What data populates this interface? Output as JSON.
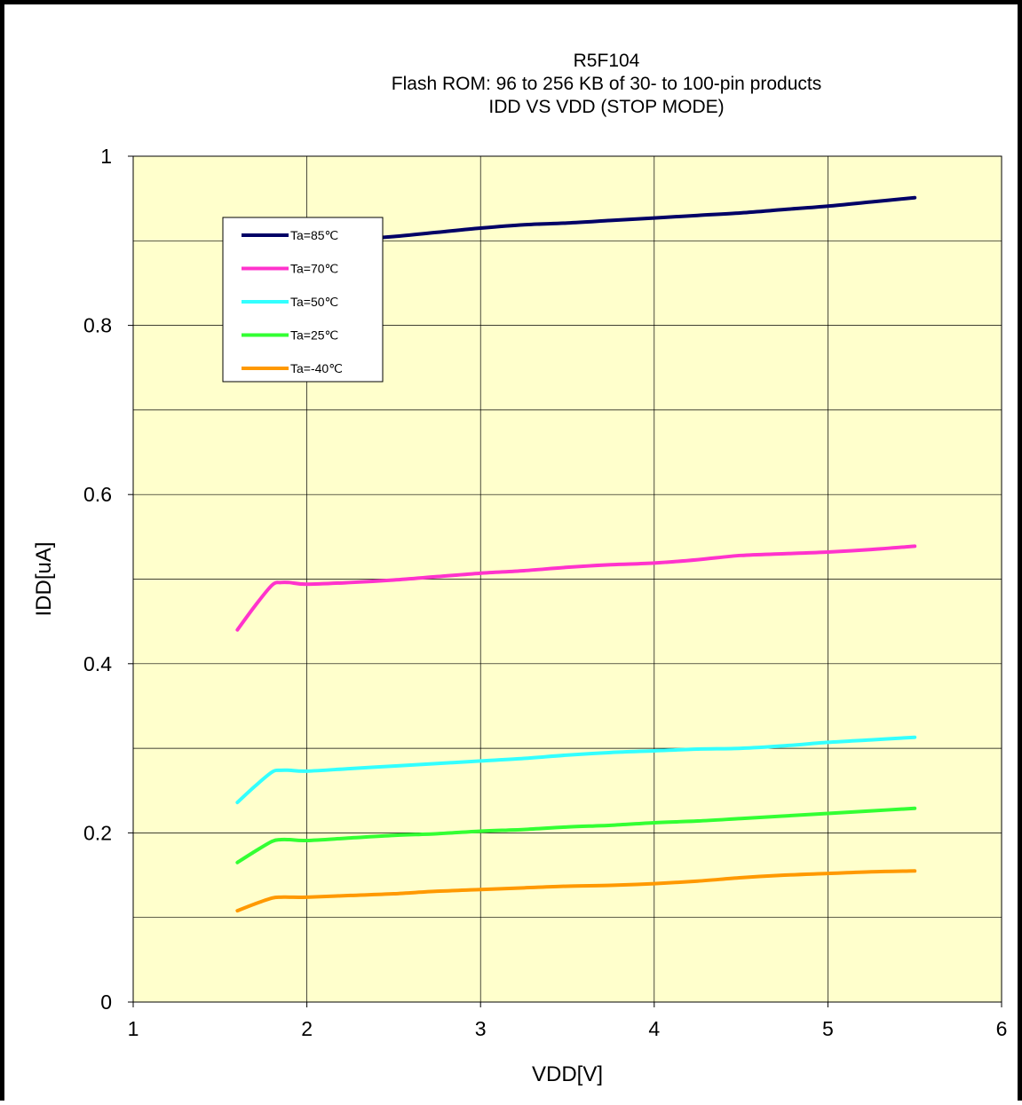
{
  "chart_data": {
    "type": "line",
    "title_lines": [
      "R5F104",
      "Flash ROM: 96 to 256 KB of 30- to 100-pin products",
      "IDD VS VDD (STOP MODE)"
    ],
    "xlabel": "VDD[V]",
    "ylabel": "IDD[uA]",
    "xlim": [
      1,
      6
    ],
    "ylim": [
      0,
      1
    ],
    "x_ticks": [
      1,
      2,
      3,
      4,
      5,
      6
    ],
    "x_tick_labels": [
      "1",
      "2",
      "3",
      "4",
      "5",
      "6"
    ],
    "y_ticks": [
      0,
      0.2,
      0.4,
      0.6,
      0.8,
      1
    ],
    "y_tick_labels": [
      "0",
      "0.2",
      "0.4",
      "0.6",
      "0.8",
      "1"
    ],
    "grid": true,
    "legend_position": "top-left",
    "plot_background": "#ffffcc",
    "series": [
      {
        "name": "Ta=85℃",
        "color": "#000066",
        "x": [
          1.6,
          1.8,
          1.85,
          2.0,
          2.25,
          2.5,
          2.75,
          3.0,
          3.25,
          3.5,
          3.75,
          4.0,
          4.25,
          4.5,
          4.75,
          5.0,
          5.25,
          5.5
        ],
        "y": [
          0.84,
          0.895,
          0.9,
          0.899,
          0.901,
          0.905,
          0.91,
          0.915,
          0.919,
          0.921,
          0.924,
          0.927,
          0.93,
          0.933,
          0.937,
          0.941,
          0.946,
          0.951
        ]
      },
      {
        "name": "Ta=70℃",
        "color": "#ff33cc",
        "x": [
          1.6,
          1.7,
          1.8,
          1.85,
          1.9,
          2.0,
          2.25,
          2.5,
          2.75,
          3.0,
          3.25,
          3.5,
          3.75,
          4.0,
          4.25,
          4.5,
          4.75,
          5.0,
          5.25,
          5.5
        ],
        "y": [
          0.44,
          0.468,
          0.493,
          0.496,
          0.496,
          0.494,
          0.496,
          0.499,
          0.503,
          0.507,
          0.51,
          0.514,
          0.517,
          0.519,
          0.523,
          0.528,
          0.53,
          0.532,
          0.535,
          0.539
        ]
      },
      {
        "name": "Ta=50℃",
        "color": "#33ffff",
        "x": [
          1.6,
          1.7,
          1.8,
          1.85,
          1.9,
          2.0,
          2.25,
          2.5,
          2.75,
          3.0,
          3.25,
          3.5,
          3.75,
          4.0,
          4.25,
          4.5,
          4.75,
          5.0,
          5.25,
          5.5
        ],
        "y": [
          0.236,
          0.255,
          0.272,
          0.274,
          0.274,
          0.273,
          0.276,
          0.279,
          0.282,
          0.285,
          0.288,
          0.292,
          0.295,
          0.297,
          0.299,
          0.3,
          0.303,
          0.307,
          0.31,
          0.313
        ]
      },
      {
        "name": "Ta=25℃",
        "color": "#33ff33",
        "x": [
          1.6,
          1.7,
          1.8,
          1.85,
          1.9,
          2.0,
          2.25,
          2.5,
          2.75,
          3.0,
          3.25,
          3.5,
          3.75,
          4.0,
          4.25,
          4.5,
          4.75,
          5.0,
          5.25,
          5.5
        ],
        "y": [
          0.165,
          0.178,
          0.19,
          0.192,
          0.192,
          0.191,
          0.194,
          0.197,
          0.199,
          0.202,
          0.204,
          0.207,
          0.209,
          0.212,
          0.214,
          0.217,
          0.22,
          0.223,
          0.226,
          0.229
        ]
      },
      {
        "name": "Ta=-40℃",
        "color": "#ff9900",
        "x": [
          1.6,
          1.7,
          1.8,
          1.85,
          1.9,
          2.0,
          2.25,
          2.5,
          2.75,
          3.0,
          3.25,
          3.5,
          3.75,
          4.0,
          4.25,
          4.5,
          4.75,
          5.0,
          5.25,
          5.5
        ],
        "y": [
          0.108,
          0.116,
          0.123,
          0.124,
          0.124,
          0.124,
          0.126,
          0.128,
          0.131,
          0.133,
          0.135,
          0.137,
          0.138,
          0.14,
          0.143,
          0.147,
          0.15,
          0.152,
          0.154,
          0.155
        ]
      }
    ]
  }
}
